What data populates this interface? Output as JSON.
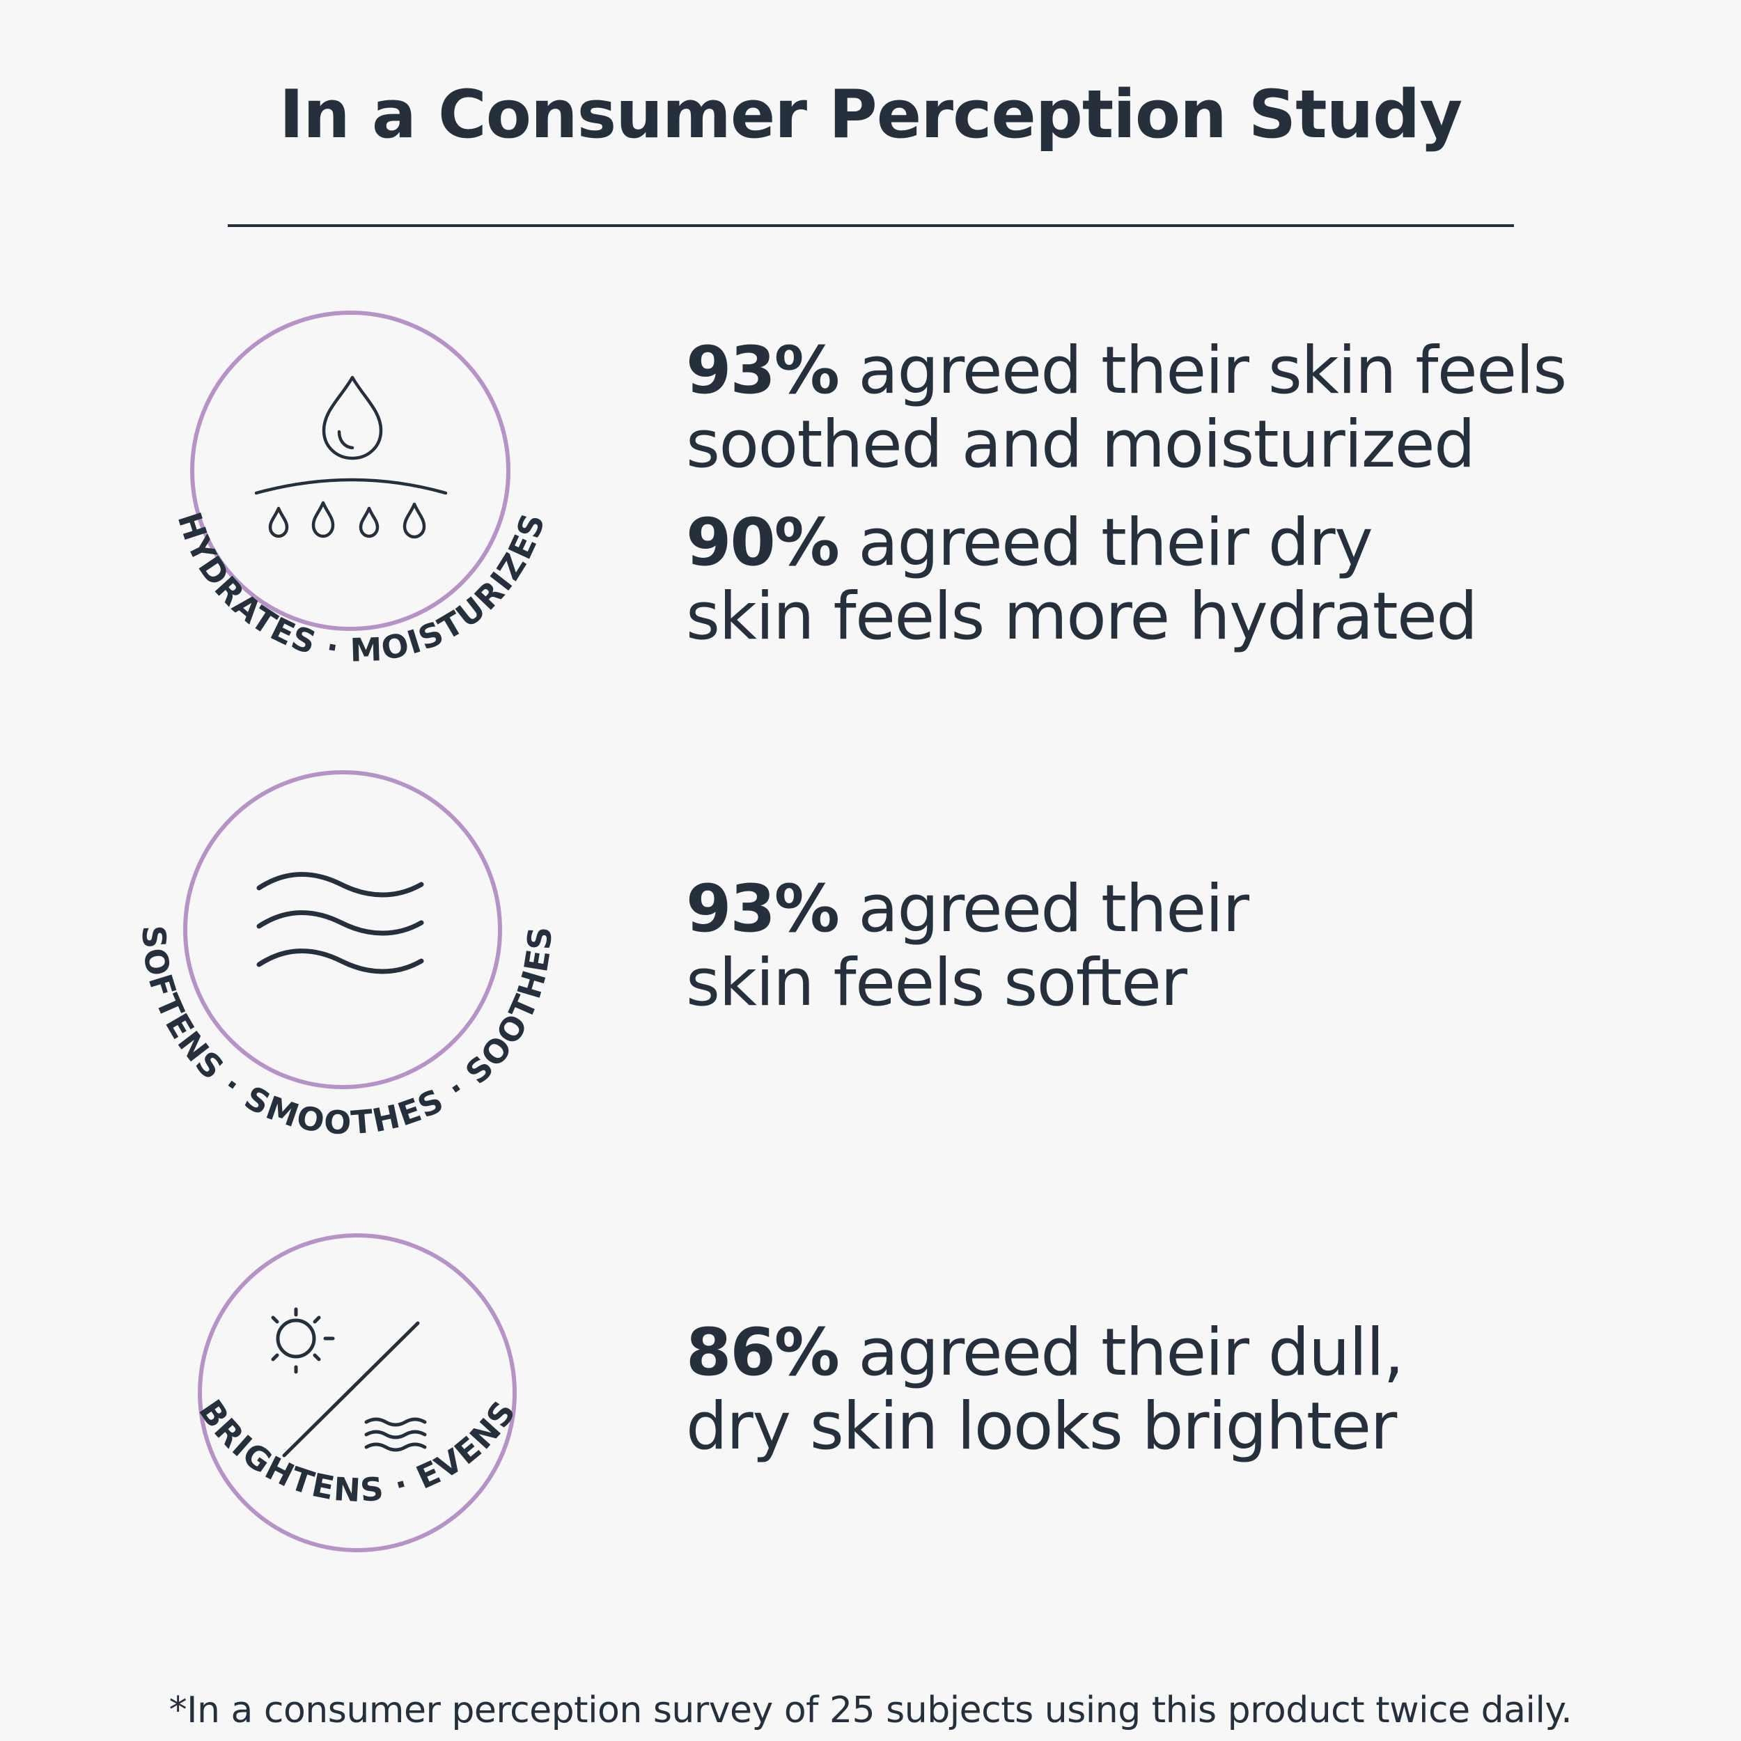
{
  "header": {
    "title": "In a Consumer Perception Study"
  },
  "colors": {
    "background": "#f7f7f7",
    "text": "#26303c",
    "accent_ring": "#b693c6"
  },
  "benefits": [
    {
      "badge_label": "HYDRATES · MOISTURIZES",
      "icon": "water-drops-icon",
      "stats": [
        {
          "percent": "93%",
          "line1_rest": " agreed their skin feels",
          "line2": "soothed and moisturized"
        },
        {
          "percent": "90%",
          "line1_rest": " agreed their dry",
          "line2": "skin feels more hydrated"
        }
      ]
    },
    {
      "badge_label": "SOFTENS · SMOOTHES · SOOTHES",
      "icon": "waves-icon",
      "stats": [
        {
          "percent": "93%",
          "line1_rest": " agreed their",
          "line2": "skin feels softer"
        }
      ]
    },
    {
      "badge_label": "BRIGHTENS · EVENS",
      "icon": "sun-and-waves-icon",
      "stats": [
        {
          "percent": "86%",
          "line1_rest": " agreed their dull,",
          "line2": "dry skin looks brighter"
        }
      ]
    }
  ],
  "footnote": "*In a consumer perception survey of 25 subjects using this product twice daily."
}
